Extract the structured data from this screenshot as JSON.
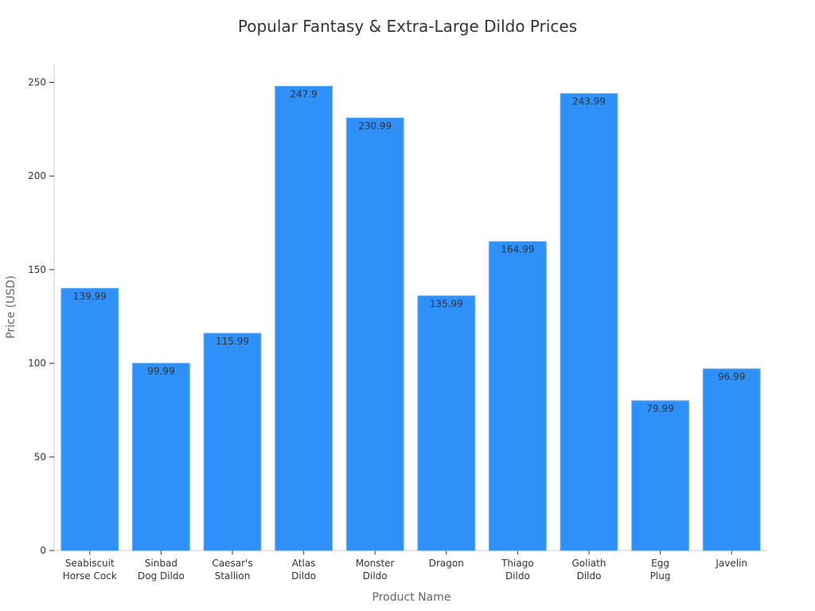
{
  "chart_data": {
    "type": "bar",
    "title": "Popular Fantasy & Extra-Large Dildo Prices",
    "xlabel": "Product Name",
    "ylabel": "Price (USD)",
    "categories": [
      [
        "Seabiscuit",
        "Horse Cock"
      ],
      [
        "Sinbad",
        "Dog Dildo"
      ],
      [
        "Caesar's",
        "Stallion"
      ],
      [
        "Atlas",
        "Dildo"
      ],
      [
        "Monster",
        "Dildo"
      ],
      [
        "Dragon"
      ],
      [
        "Thiago",
        "Dildo"
      ],
      [
        "Goliath",
        "Dildo"
      ],
      [
        "Egg",
        "Plug"
      ],
      [
        "Javelin"
      ]
    ],
    "values": [
      139.99,
      99.99,
      115.99,
      247.9,
      230.99,
      135.99,
      164.99,
      243.99,
      79.99,
      96.99
    ],
    "data_labels": [
      "139.99",
      "99.99",
      "115.99",
      "247.9",
      "230.99",
      "135.99",
      "164.99",
      "243.99",
      "79.99",
      "96.99"
    ],
    "ylim": [
      0,
      260
    ],
    "yticks": [
      0,
      50,
      100,
      150,
      200,
      250
    ],
    "grid": false,
    "legend": "none",
    "colors": {
      "bar": "#2f90f9",
      "bar_edge": "#5aa9fb",
      "axis": "#cccccc",
      "text": "#333333",
      "axis_title": "#666666"
    }
  }
}
